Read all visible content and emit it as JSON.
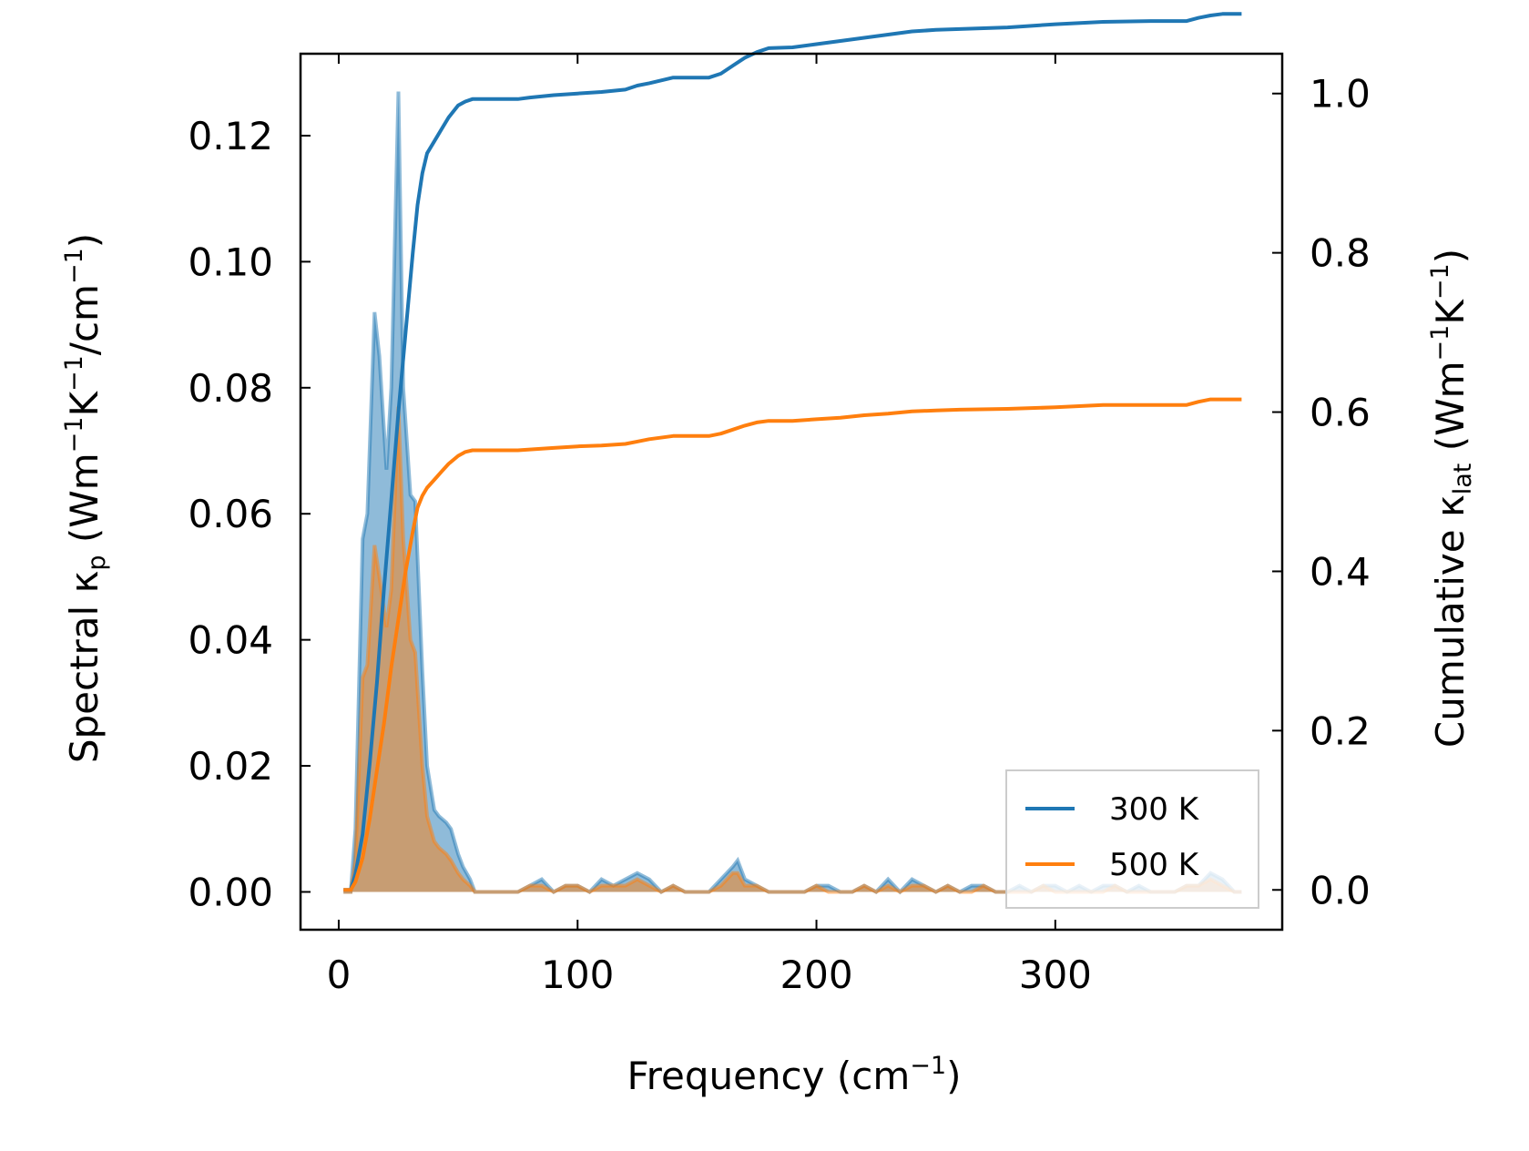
{
  "chart_data": {
    "type": "line",
    "x_axis": {
      "label": "Frequency (cm",
      "label_sup": "−1",
      "label_close": ")",
      "range": [
        -16,
        395
      ],
      "ticks": [
        0,
        100,
        200,
        300
      ],
      "tick_labels": [
        "0",
        "100",
        "200",
        "300"
      ]
    },
    "y_left": {
      "label_part1": "Spectral κ",
      "label_sub": "p",
      "label_part2": " (Wm",
      "label_sup1": "−1",
      "label_part3": "K",
      "label_sup2": "−1",
      "label_part4": "/cm",
      "label_sup3": "−1",
      "label_part5": ")",
      "range": [
        -0.006,
        0.133
      ],
      "ticks": [
        0,
        0.02,
        0.04,
        0.06,
        0.08,
        0.1,
        0.12
      ],
      "tick_labels": [
        "0.00",
        "0.02",
        "0.04",
        "0.06",
        "0.08",
        "0.10",
        "0.12"
      ]
    },
    "y_right": {
      "label_part1": "Cumulative κ",
      "label_sub": "lat",
      "label_part2": " (Wm",
      "label_sup1": "−1",
      "label_part3": "K",
      "label_sup2": "−1",
      "label_part4": ")",
      "range": [
        -0.05,
        1.05
      ],
      "ticks": [
        0,
        0.2,
        0.4,
        0.6,
        0.8,
        1.0
      ],
      "tick_labels": [
        "0.0",
        "0.2",
        "0.4",
        "0.6",
        "0.8",
        "1.0"
      ]
    },
    "legend": {
      "position": "lower-right",
      "entries": [
        "300 K",
        "500 K"
      ]
    },
    "series": [
      {
        "name": "300 K",
        "color": "#1f77b4",
        "spectral": {
          "x": [
            2,
            5,
            7,
            10,
            12,
            15,
            17,
            20,
            22,
            25,
            27,
            30,
            32,
            35,
            37,
            40,
            42,
            45,
            47,
            50,
            52,
            55,
            57,
            60,
            65,
            70,
            75,
            80,
            85,
            90,
            95,
            100,
            105,
            110,
            115,
            120,
            125,
            130,
            135,
            140,
            145,
            150,
            155,
            160,
            165,
            167,
            170,
            175,
            180,
            185,
            190,
            195,
            200,
            205,
            210,
            215,
            220,
            225,
            230,
            235,
            240,
            245,
            250,
            255,
            260,
            265,
            270,
            275,
            280,
            285,
            290,
            295,
            300,
            305,
            310,
            315,
            320,
            325,
            330,
            335,
            340,
            345,
            350,
            355,
            360,
            365,
            370,
            375,
            378
          ],
          "y": [
            0,
            0,
            0.01,
            0.056,
            0.06,
            0.092,
            0.085,
            0.067,
            0.08,
            0.127,
            0.08,
            0.063,
            0.062,
            0.035,
            0.02,
            0.013,
            0.012,
            0.011,
            0.01,
            0.006,
            0.004,
            0.002,
            0,
            0,
            0,
            0,
            0,
            0.001,
            0.002,
            0,
            0.001,
            0.001,
            0,
            0.002,
            0.001,
            0.002,
            0.003,
            0.002,
            0,
            0.001,
            0,
            0,
            0,
            0.002,
            0.004,
            0.005,
            0.002,
            0.001,
            0,
            0,
            0,
            0,
            0.001,
            0.001,
            0,
            0,
            0.001,
            0,
            0.002,
            0,
            0.002,
            0.001,
            0,
            0.001,
            0,
            0.001,
            0.001,
            0,
            0,
            0.001,
            0,
            0.001,
            0.001,
            0,
            0.001,
            0,
            0.001,
            0.001,
            0,
            0.001,
            0,
            0,
            0,
            0.001,
            0.001,
            0.003,
            0.002,
            0,
            0
          ]
        },
        "cumulative": {
          "x": [
            2,
            5,
            7,
            10,
            13,
            16,
            19,
            22,
            25,
            28,
            31,
            33,
            35,
            37,
            40,
            43,
            46,
            50,
            53,
            56,
            60,
            65,
            70,
            75,
            80,
            90,
            100,
            110,
            120,
            125,
            130,
            140,
            150,
            155,
            160,
            165,
            170,
            175,
            180,
            190,
            200,
            210,
            220,
            230,
            240,
            250,
            260,
            280,
            300,
            320,
            340,
            355,
            360,
            365,
            370,
            378
          ],
          "y": [
            0,
            0,
            0.02,
            0.07,
            0.16,
            0.26,
            0.38,
            0.49,
            0.6,
            0.7,
            0.8,
            0.86,
            0.9,
            0.925,
            0.94,
            0.955,
            0.97,
            0.985,
            0.99,
            0.993,
            0.993,
            0.993,
            0.993,
            0.993,
            0.995,
            0.998,
            1.0,
            1.002,
            1.005,
            1.01,
            1.013,
            1.02,
            1.02,
            1.02,
            1.025,
            1.035,
            1.045,
            1.052,
            1.057,
            1.058,
            1.062,
            1.066,
            1.07,
            1.074,
            1.078,
            1.08,
            1.081,
            1.083,
            1.087,
            1.09,
            1.091,
            1.091,
            1.095,
            1.098,
            1.1,
            1.1
          ]
        }
      },
      {
        "name": "500 K",
        "color": "#ff7f0e",
        "spectral": {
          "x": [
            2,
            5,
            7,
            10,
            12,
            15,
            17,
            20,
            22,
            25,
            27,
            30,
            32,
            35,
            37,
            40,
            42,
            45,
            47,
            50,
            52,
            55,
            57,
            60,
            65,
            70,
            75,
            80,
            85,
            90,
            95,
            100,
            105,
            110,
            115,
            120,
            125,
            130,
            135,
            140,
            145,
            150,
            155,
            160,
            165,
            167,
            170,
            175,
            180,
            185,
            190,
            195,
            200,
            205,
            210,
            215,
            220,
            225,
            230,
            235,
            240,
            245,
            250,
            255,
            260,
            265,
            270,
            275,
            280,
            285,
            290,
            295,
            300,
            305,
            310,
            315,
            320,
            325,
            330,
            335,
            340,
            345,
            350,
            355,
            360,
            365,
            370,
            375,
            378
          ],
          "y": [
            0,
            0,
            0.005,
            0.034,
            0.036,
            0.055,
            0.05,
            0.042,
            0.048,
            0.077,
            0.056,
            0.04,
            0.038,
            0.02,
            0.012,
            0.008,
            0.007,
            0.006,
            0.005,
            0.003,
            0.002,
            0.001,
            0,
            0,
            0,
            0,
            0,
            0.001,
            0.001,
            0,
            0.001,
            0.001,
            0,
            0.001,
            0.001,
            0.001,
            0.002,
            0.001,
            0,
            0.001,
            0,
            0,
            0,
            0.001,
            0.003,
            0.003,
            0.001,
            0.001,
            0,
            0,
            0,
            0,
            0.001,
            0,
            0,
            0,
            0.001,
            0,
            0.001,
            0,
            0.001,
            0.001,
            0,
            0.001,
            0,
            0,
            0.001,
            0,
            0,
            0,
            0,
            0.001,
            0,
            0,
            0,
            0,
            0,
            0.001,
            0,
            0,
            0,
            0,
            0,
            0.001,
            0.001,
            0.002,
            0.001,
            0,
            0
          ]
        },
        "cumulative": {
          "x": [
            2,
            5,
            7,
            10,
            13,
            16,
            19,
            22,
            25,
            28,
            31,
            33,
            35,
            37,
            40,
            43,
            46,
            50,
            53,
            56,
            60,
            65,
            70,
            75,
            80,
            90,
            100,
            110,
            120,
            125,
            130,
            140,
            150,
            155,
            160,
            165,
            170,
            175,
            180,
            190,
            200,
            210,
            220,
            230,
            240,
            250,
            260,
            280,
            300,
            320,
            340,
            355,
            360,
            365,
            370,
            378
          ],
          "y": [
            0,
            0,
            0.01,
            0.04,
            0.09,
            0.15,
            0.21,
            0.28,
            0.34,
            0.4,
            0.45,
            0.48,
            0.495,
            0.505,
            0.515,
            0.525,
            0.535,
            0.545,
            0.55,
            0.552,
            0.552,
            0.552,
            0.552,
            0.552,
            0.553,
            0.555,
            0.557,
            0.558,
            0.56,
            0.563,
            0.566,
            0.57,
            0.57,
            0.57,
            0.573,
            0.578,
            0.583,
            0.587,
            0.589,
            0.589,
            0.591,
            0.593,
            0.596,
            0.598,
            0.601,
            0.602,
            0.603,
            0.604,
            0.606,
            0.609,
            0.609,
            0.609,
            0.613,
            0.616,
            0.616,
            0.616
          ]
        }
      }
    ]
  }
}
